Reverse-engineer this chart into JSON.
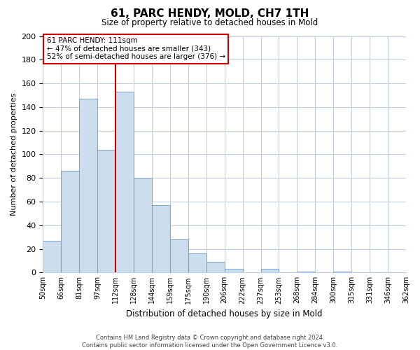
{
  "title": "61, PARC HENDY, MOLD, CH7 1TH",
  "subtitle": "Size of property relative to detached houses in Mold",
  "xlabel": "Distribution of detached houses by size in Mold",
  "ylabel": "Number of detached properties",
  "bar_color": "#ccdded",
  "bar_edge_color": "#6699cc",
  "bins": [
    "50sqm",
    "66sqm",
    "81sqm",
    "97sqm",
    "112sqm",
    "128sqm",
    "144sqm",
    "159sqm",
    "175sqm",
    "190sqm",
    "206sqm",
    "222sqm",
    "237sqm",
    "253sqm",
    "268sqm",
    "284sqm",
    "300sqm",
    "315sqm",
    "331sqm",
    "346sqm",
    "362sqm"
  ],
  "values": [
    27,
    86,
    147,
    104,
    153,
    80,
    57,
    28,
    16,
    9,
    3,
    0,
    3,
    0,
    1,
    0,
    1,
    0,
    0,
    0,
    1
  ],
  "vline_x": 4,
  "vline_color": "#cc0000",
  "ylim": [
    0,
    200
  ],
  "yticks": [
    0,
    20,
    40,
    60,
    80,
    100,
    120,
    140,
    160,
    180,
    200
  ],
  "annotation_title": "61 PARC HENDY: 111sqm",
  "annotation_line1": "← 47% of detached houses are smaller (343)",
  "annotation_line2": "52% of semi-detached houses are larger (376) →",
  "footer1": "Contains HM Land Registry data © Crown copyright and database right 2024.",
  "footer2": "Contains public sector information licensed under the Open Government Licence v3.0.",
  "background_color": "#ffffff",
  "grid_color": "#bbccdd"
}
